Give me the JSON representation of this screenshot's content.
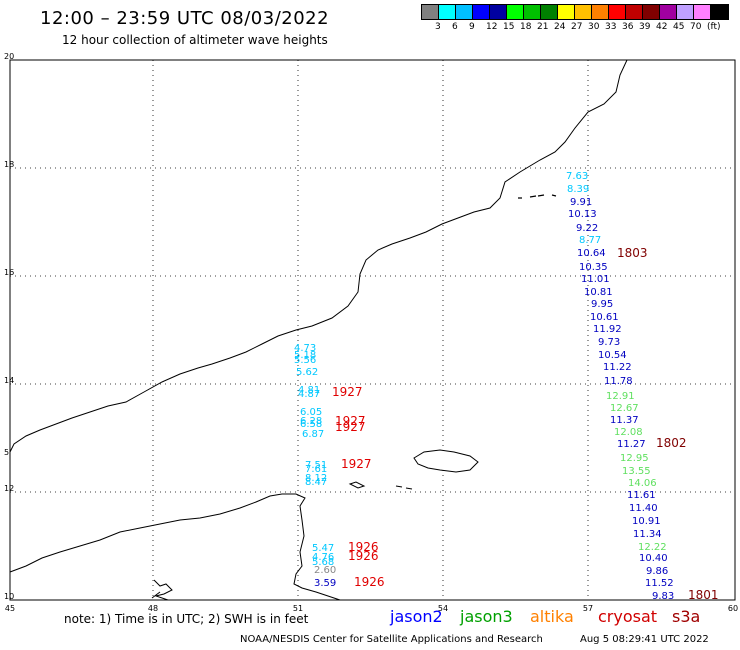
{
  "header": {
    "title": "12:00 – 23:59 UTC 08/03/2022",
    "subtitle": "12 hour collection of altimeter wave heights"
  },
  "scale": {
    "colors": [
      "#808080",
      "#00ffff",
      "#00c0ff",
      "#0000ff",
      "#0000a0",
      "#00ff00",
      "#00c000",
      "#008000",
      "#ffff00",
      "#ffc000",
      "#ff8000",
      "#ff0000",
      "#c00000",
      "#800000",
      "#a000a0",
      "#c0a0ff",
      "#ff80ff",
      "#000000"
    ],
    "labels": [
      "3",
      "6",
      "9",
      "12",
      "15",
      "18",
      "21",
      "24",
      "27",
      "30",
      "33",
      "36",
      "39",
      "42",
      "45",
      "70",
      "(ft)"
    ]
  },
  "axes": {
    "x_ticks": [
      "45",
      "48",
      "51",
      "54",
      "57",
      "60"
    ],
    "y_ticks": [
      "20",
      "18",
      "16",
      "14",
      "12",
      "10"
    ]
  },
  "labels": {
    "y10_extra": "10"
  },
  "tracks": {
    "jason2": [
      {
        "v": "9.91"
      },
      {
        "v": "10.13"
      },
      {
        "v": "9.22"
      },
      {
        "v": "10.64"
      },
      {
        "v": "10.35"
      },
      {
        "v": "11.01"
      },
      {
        "v": "10.81"
      },
      {
        "v": "9.95"
      },
      {
        "v": "10.61"
      },
      {
        "v": "11.92"
      },
      {
        "v": "9.73"
      },
      {
        "v": "10.54"
      },
      {
        "v": "11.22"
      },
      {
        "v": "11.78"
      },
      {
        "v": "11.37"
      },
      {
        "v": "11.27"
      },
      {
        "v": "11.61"
      },
      {
        "v": "11.40"
      },
      {
        "v": "10.91"
      },
      {
        "v": "11.34"
      },
      {
        "v": "10.40"
      },
      {
        "v": "9.86"
      },
      {
        "v": "11.52"
      },
      {
        "v": "9.83"
      },
      {
        "v": "3.59"
      }
    ],
    "light": [
      {
        "v": "7.63"
      },
      {
        "v": "8.39"
      },
      {
        "v": "8.77"
      },
      {
        "v": "4.73"
      },
      {
        "v": "5.18"
      },
      {
        "v": "5.56"
      },
      {
        "v": "5.62"
      },
      {
        "v": "4.81"
      },
      {
        "v": "4.87"
      },
      {
        "v": "6.05"
      },
      {
        "v": "6.28"
      },
      {
        "v": "6.58"
      },
      {
        "v": "6.87"
      },
      {
        "v": "7.51"
      },
      {
        "v": "7.61"
      },
      {
        "v": "8.12"
      },
      {
        "v": "8.47"
      },
      {
        "v": "5.68"
      },
      {
        "v": "5.47"
      },
      {
        "v": "4.76"
      }
    ],
    "green": [
      {
        "v": "12.91"
      },
      {
        "v": "12.67"
      },
      {
        "v": "12.08"
      },
      {
        "v": "12.95"
      },
      {
        "v": "13.55"
      },
      {
        "v": "14.06"
      },
      {
        "v": "12.22"
      }
    ],
    "gray": [
      {
        "v": "2.60"
      }
    ],
    "times_dark": [
      {
        "v": "1803"
      },
      {
        "v": "1802"
      },
      {
        "v": "1801"
      }
    ],
    "times_red": [
      {
        "v": "1927"
      },
      {
        "v": "1927"
      },
      {
        "v": "1927"
      },
      {
        "v": "1927"
      },
      {
        "v": "1926"
      },
      {
        "v": "1926"
      },
      {
        "v": "1926"
      }
    ]
  },
  "note": "note: 1) Time is in UTC; 2) SWH is in feet",
  "satellites": [
    {
      "name": "jason2",
      "color": "#0000ff"
    },
    {
      "name": "jason3",
      "color": "#00a000"
    },
    {
      "name": "altika",
      "color": "#ff8000"
    },
    {
      "name": "cryosat",
      "color": "#d00000"
    },
    {
      "name": "s3a",
      "color": "#a00000"
    }
  ],
  "footer": {
    "org": "NOAA/NESDIS Center for Satellite Applications and Research",
    "stamp": "Aug  5 08:29:41 UTC 2022"
  }
}
